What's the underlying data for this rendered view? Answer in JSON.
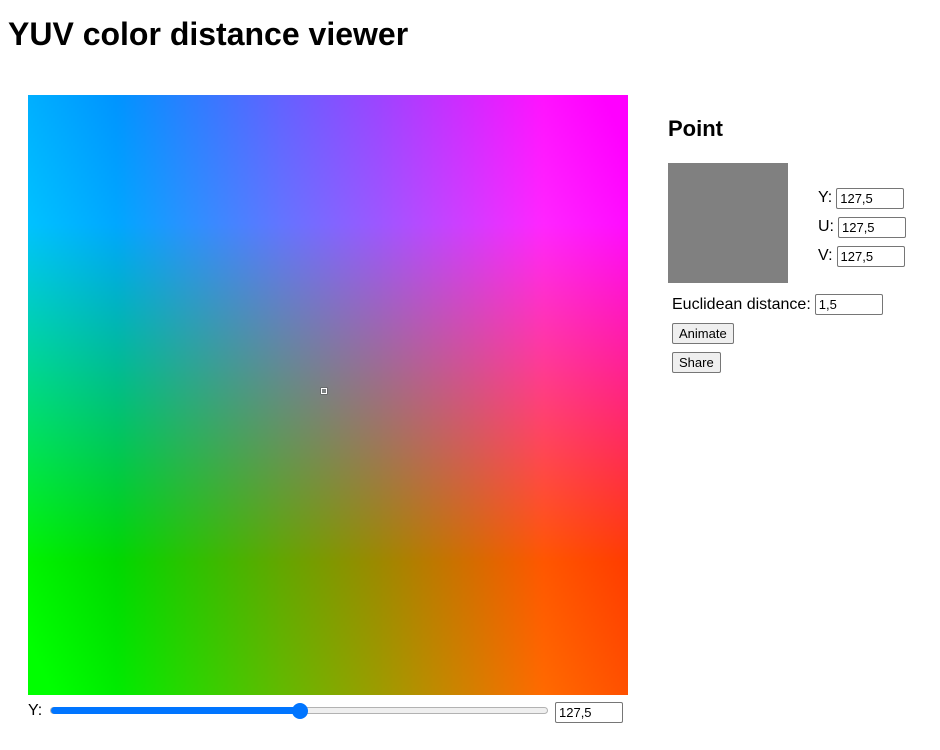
{
  "page": {
    "title": "YUV color distance viewer"
  },
  "slider": {
    "label": "Y:",
    "value": "127,5",
    "fraction": 0.5,
    "accent_color": "#0075ff"
  },
  "point_panel": {
    "title": "Point",
    "swatch_color": "#808080",
    "y_label": "Y:",
    "y_value": "127,5",
    "u_label": "U:",
    "u_value": "127,5",
    "v_label": "V:",
    "v_value": "127,5",
    "distance_label": "Euclidean distance:",
    "distance_value": "1,5",
    "animate_label": "Animate",
    "share_label": "Share"
  },
  "plane": {
    "y_value": 127.5,
    "selected_u": 127.5,
    "selected_v": 127.5
  }
}
